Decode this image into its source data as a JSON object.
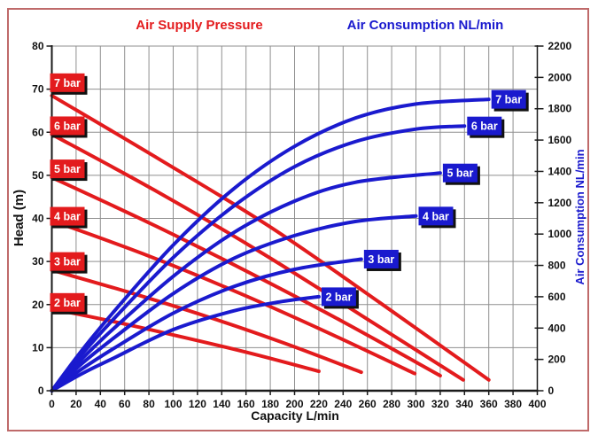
{
  "figure": {
    "background": "#ffffff",
    "border_color": "#bf6a6a"
  },
  "chart_data": {
    "type": "line",
    "title_left": "Air Supply Pressure",
    "title_right": "Air Consumption NL/min",
    "colors": {
      "red": "#e31b1d",
      "blue": "#1a1ace",
      "grid": "#8f8f8f",
      "axis": "#1a1a1a",
      "tick_text": "#111111",
      "label_text": "#ffffff",
      "label_shadow": "#111111"
    },
    "x_axis": {
      "label": "Capacity L/min",
      "range": [
        0,
        400
      ],
      "tick_step": 20
    },
    "y_axis_left": {
      "label": "Head (m)",
      "range": [
        0,
        80
      ],
      "tick_step": 10
    },
    "y_axis_right": {
      "label": "Air Consumption NL/min",
      "range": [
        0,
        2200
      ],
      "tick_step": 200
    },
    "grid": {
      "x_step": 20,
      "y_step": 10,
      "legend": "none"
    },
    "head_series": [
      {
        "label": "2 bar",
        "label_head": 20.5,
        "points": [
          [
            0,
            19
          ],
          [
            55,
            15.8
          ],
          [
            110,
            12.3
          ],
          [
            165,
            8.6
          ],
          [
            220,
            4.5
          ]
        ]
      },
      {
        "label": "3 bar",
        "label_head": 30,
        "points": [
          [
            0,
            28
          ],
          [
            64,
            22.8
          ],
          [
            128,
            17.2
          ],
          [
            192,
            11
          ],
          [
            255,
            4.3
          ]
        ]
      },
      {
        "label": "4 bar",
        "label_head": 40.5,
        "points": [
          [
            0,
            39.5
          ],
          [
            75,
            31.8
          ],
          [
            150,
            23.2
          ],
          [
            225,
            13.8
          ],
          [
            299,
            4
          ]
        ]
      },
      {
        "label": "5 bar",
        "label_head": 51.5,
        "points": [
          [
            0,
            49.5
          ],
          [
            80,
            39
          ],
          [
            160,
            27.8
          ],
          [
            240,
            16
          ],
          [
            320,
            3.5
          ]
        ]
      },
      {
        "label": "6 bar",
        "label_head": 61.5,
        "points": [
          [
            0,
            59.5
          ],
          [
            85,
            46.5
          ],
          [
            170,
            32.5
          ],
          [
            255,
            17.5
          ],
          [
            339,
            2.5
          ]
        ]
      },
      {
        "label": "7 bar",
        "label_head": 71.5,
        "points": [
          [
            0,
            68.5
          ],
          [
            90,
            53.5
          ],
          [
            180,
            38
          ],
          [
            270,
            20.5
          ],
          [
            360,
            2.5
          ]
        ]
      }
    ],
    "air_series": [
      {
        "label": "2 bar",
        "points": [
          [
            0,
            0
          ],
          [
            25,
            110
          ],
          [
            50,
            205
          ],
          [
            100,
            390
          ],
          [
            150,
            510
          ],
          [
            190,
            570
          ],
          [
            220,
            600
          ]
        ]
      },
      {
        "label": "3 bar",
        "points": [
          [
            0,
            0
          ],
          [
            25,
            140
          ],
          [
            50,
            265
          ],
          [
            100,
            495
          ],
          [
            150,
            665
          ],
          [
            200,
            775
          ],
          [
            255,
            840
          ]
        ]
      },
      {
        "label": "4 bar",
        "points": [
          [
            0,
            0
          ],
          [
            25,
            175
          ],
          [
            50,
            330
          ],
          [
            100,
            620
          ],
          [
            150,
            845
          ],
          [
            200,
            990
          ],
          [
            250,
            1080
          ],
          [
            300,
            1115
          ]
        ]
      },
      {
        "label": "5 bar",
        "points": [
          [
            0,
            0
          ],
          [
            25,
            205
          ],
          [
            50,
            390
          ],
          [
            100,
            730
          ],
          [
            150,
            1010
          ],
          [
            200,
            1210
          ],
          [
            250,
            1330
          ],
          [
            320,
            1390
          ]
        ]
      },
      {
        "label": "6 bar",
        "points": [
          [
            0,
            0
          ],
          [
            25,
            235
          ],
          [
            50,
            450
          ],
          [
            100,
            850
          ],
          [
            150,
            1180
          ],
          [
            200,
            1430
          ],
          [
            250,
            1590
          ],
          [
            300,
            1670
          ],
          [
            340,
            1690
          ]
        ]
      },
      {
        "label": "7 bar",
        "points": [
          [
            0,
            0
          ],
          [
            25,
            260
          ],
          [
            50,
            495
          ],
          [
            100,
            930
          ],
          [
            150,
            1290
          ],
          [
            200,
            1560
          ],
          [
            250,
            1740
          ],
          [
            300,
            1830
          ],
          [
            360,
            1860
          ]
        ]
      }
    ]
  }
}
